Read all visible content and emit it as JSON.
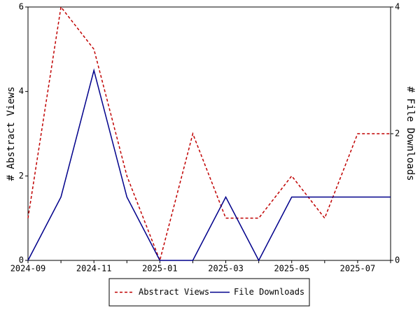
{
  "chart_data": {
    "type": "line",
    "categories": [
      "2024-09",
      null,
      "2024-11",
      null,
      "2025-01",
      null,
      "2025-03",
      null,
      "2025-05",
      null,
      "2025-07",
      null
    ],
    "series": [
      {
        "name": "Abstract Views",
        "color": "#c00000",
        "linestyle": "dashed",
        "values": [
          1,
          6,
          5,
          2,
          0,
          3,
          1,
          1,
          2,
          1,
          3,
          3
        ]
      },
      {
        "name": "File Downloads",
        "color": "#00008b",
        "linestyle": "solid",
        "axis": "y2",
        "values": [
          0,
          1,
          3,
          1,
          0,
          0,
          1,
          0,
          1,
          1,
          1,
          1
        ]
      }
    ],
    "ylabel": "# Abstract Views",
    "y2label": "# File Downloads",
    "ylim": [
      0,
      6
    ],
    "yticks": [
      0,
      2,
      4,
      6
    ],
    "y2lim": [
      0,
      4
    ],
    "y2ticks": [
      0,
      2,
      4
    ],
    "legend": "bottom"
  }
}
